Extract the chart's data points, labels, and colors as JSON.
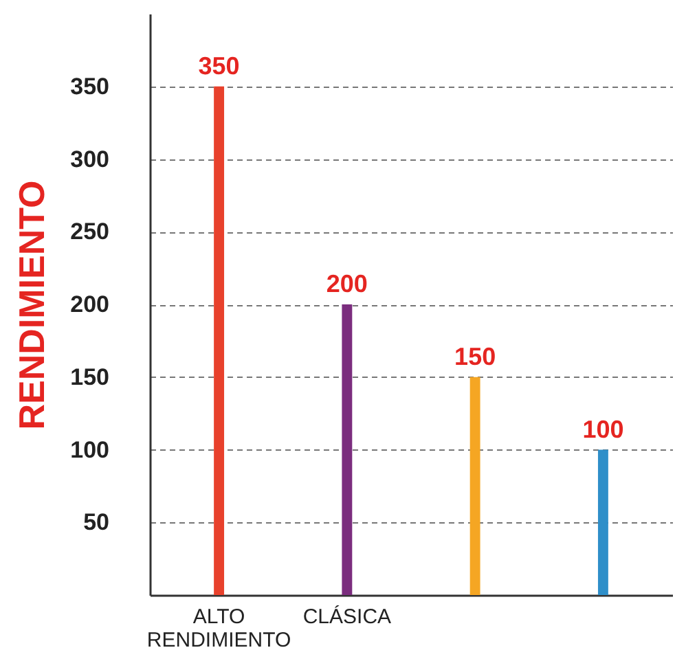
{
  "chart_data": {
    "type": "bar",
    "ylabel": "RENDIMIENTO",
    "categories": [
      "ALTO RENDIMIENTO",
      "CLÁSICA",
      null,
      null
    ],
    "values": [
      350,
      200,
      150,
      100
    ],
    "colors": [
      "#e8412c",
      "#7b2d7e",
      "#f5a623",
      "#2f8fc9"
    ],
    "ylim": [
      0,
      400
    ],
    "yticks": [
      50,
      100,
      150,
      200,
      250,
      300,
      350
    ],
    "grid": "y",
    "data_labels": true
  }
}
